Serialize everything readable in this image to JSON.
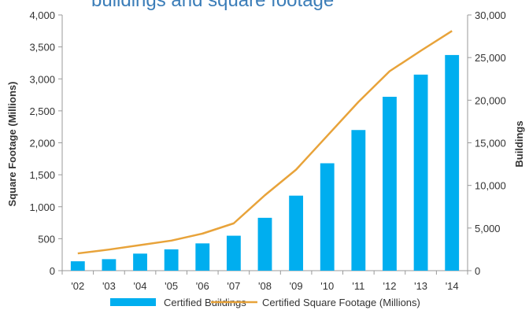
{
  "chart_data": {
    "type": "bar",
    "title": "buildings and square footage",
    "categories": [
      "'02",
      "'03",
      "'04",
      "'05",
      "'06",
      "'07",
      "'08",
      "'09",
      "'10",
      "'11",
      "'12",
      "'13",
      "'14"
    ],
    "ylabel_left": "Square Footage (Millions)",
    "ylabel_right": "Buildings",
    "ylim_left": [
      0,
      4000
    ],
    "ylim_right": [
      0,
      30000
    ],
    "yticks_left": [
      "0",
      "500",
      "1,000",
      "1,500",
      "2,000",
      "2,500",
      "3,000",
      "3,500",
      "4,000"
    ],
    "yticks_right": [
      "0",
      "5,000",
      "10,000",
      "15,000",
      "20,000",
      "25,000",
      "30,000"
    ],
    "grid": false,
    "legend_position": "bottom",
    "series": [
      {
        "name": "Certified Buildings",
        "type": "bar",
        "axis": "right",
        "color": "#00AEEF",
        "values": [
          1100,
          1350,
          2000,
          2500,
          3200,
          4100,
          6200,
          8800,
          12600,
          16500,
          20400,
          23000,
          25300
        ]
      },
      {
        "name": "Certified Square Footage (Millions)",
        "type": "line",
        "axis": "left",
        "color": "#E8A33A",
        "values": [
          270,
          330,
          400,
          470,
          580,
          740,
          1180,
          1580,
          2110,
          2640,
          3120,
          3440,
          3750
        ]
      }
    ]
  }
}
